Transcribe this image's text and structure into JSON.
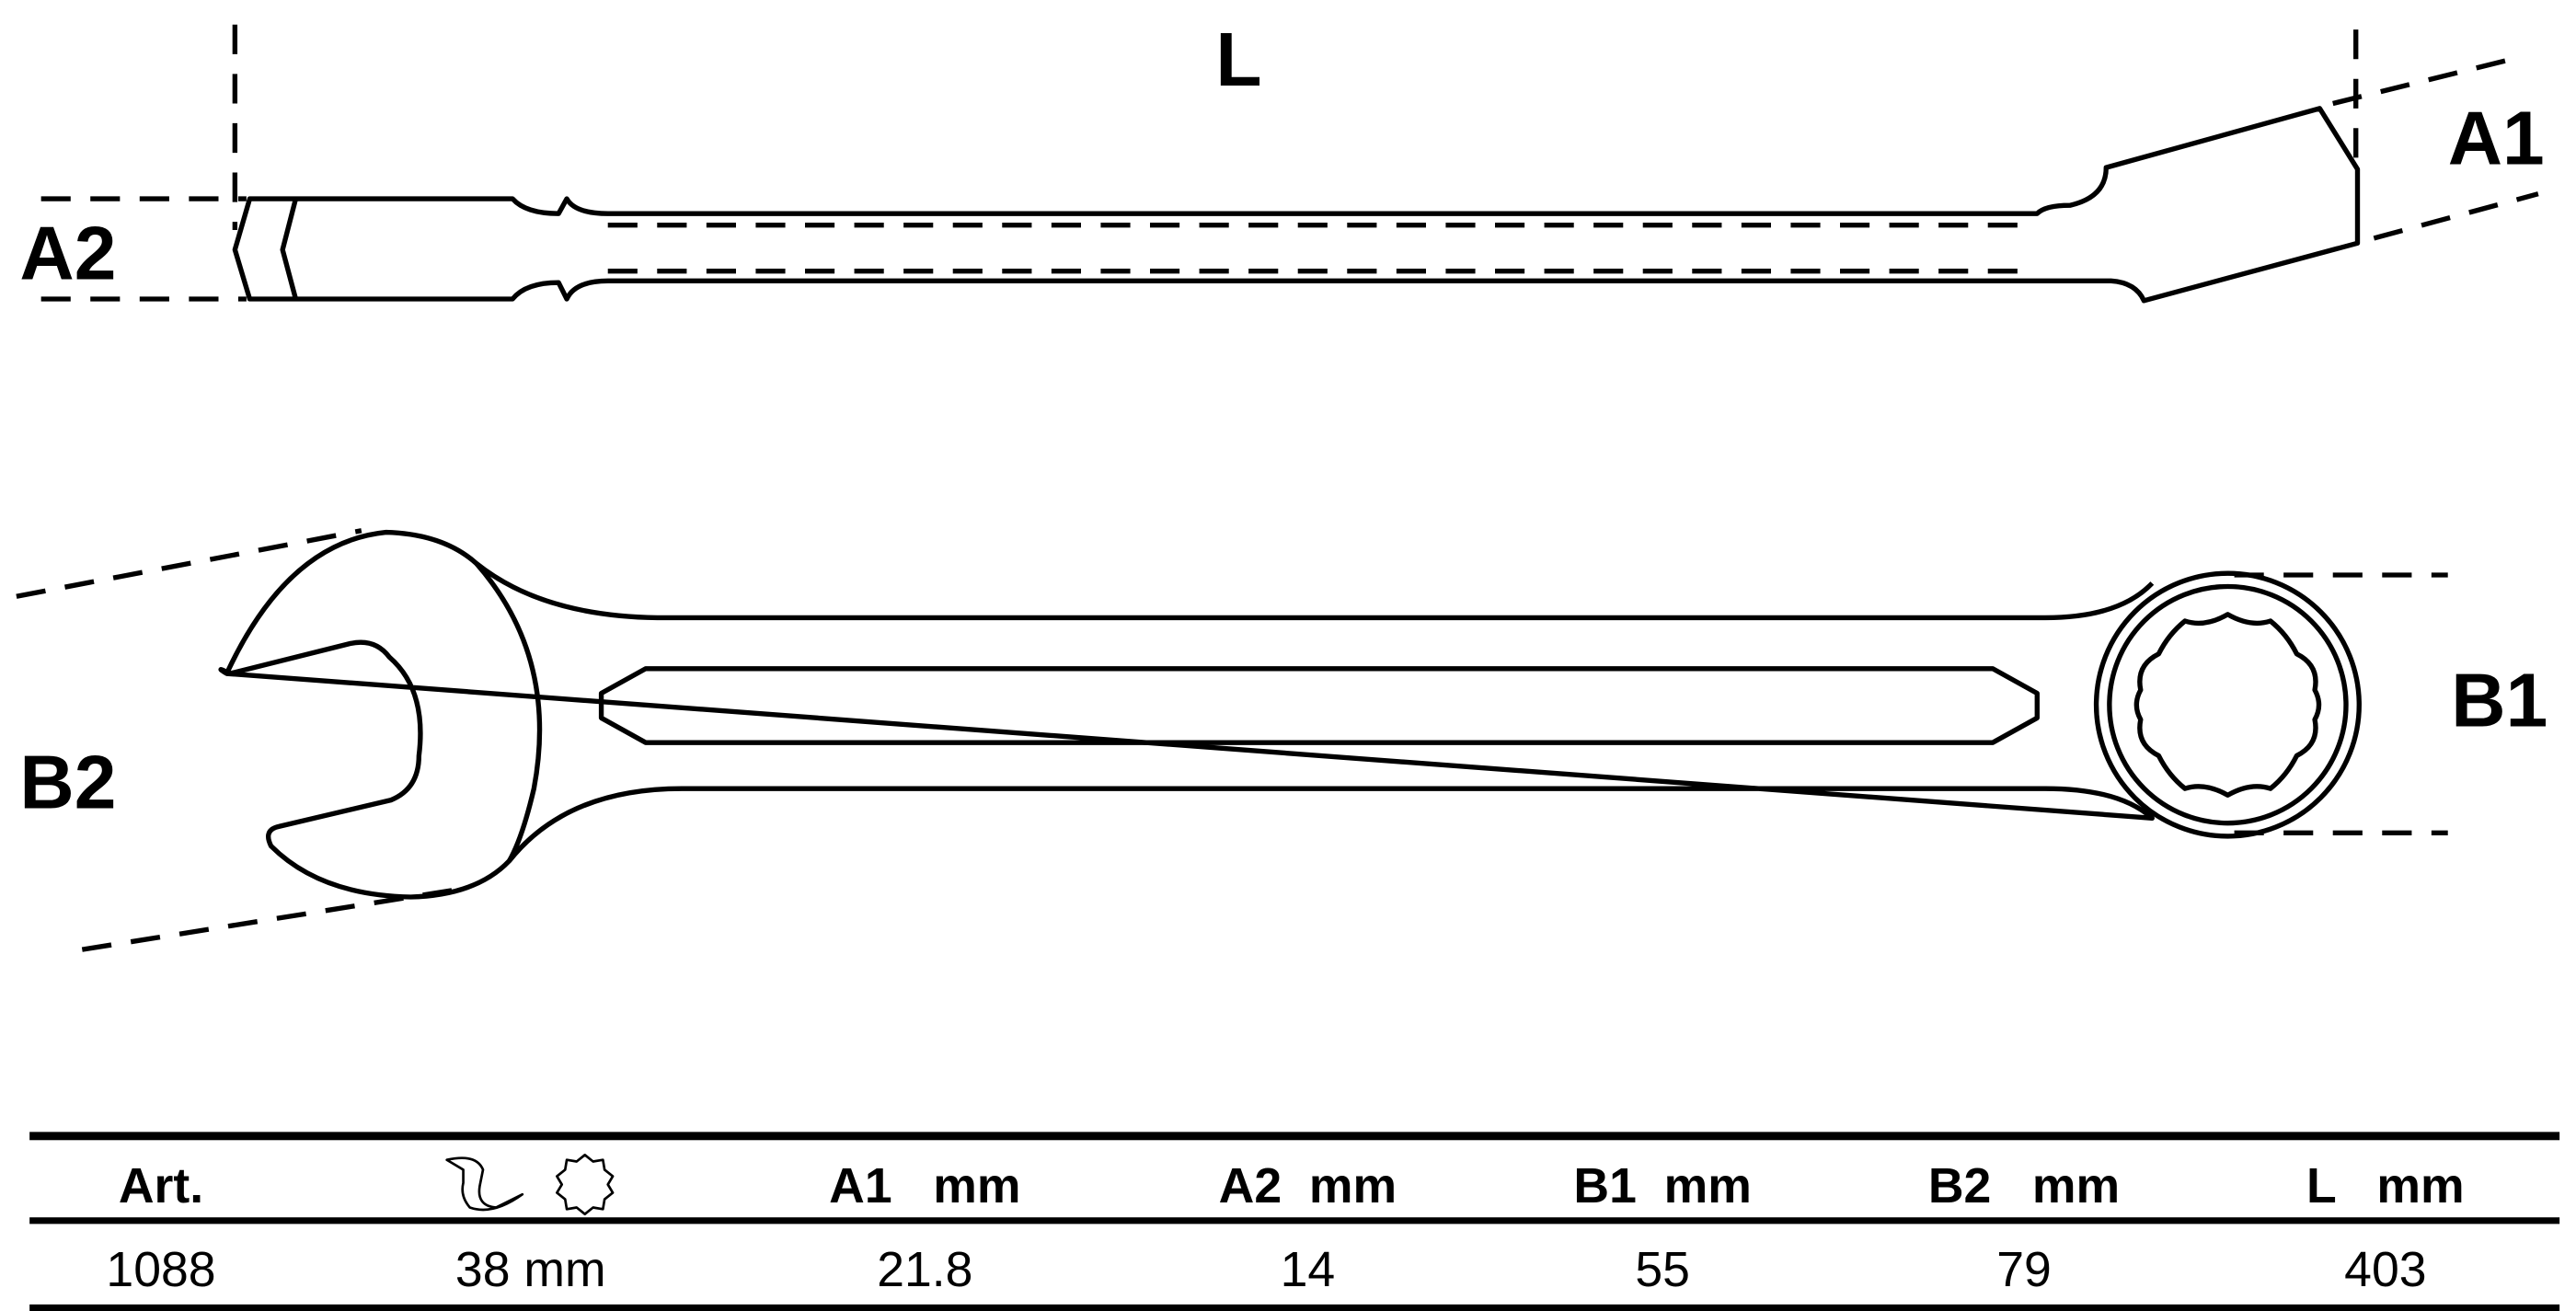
{
  "labels": {
    "L": "L",
    "A1": "A1",
    "A2": "A2",
    "B1": "B1",
    "B2": "B2"
  },
  "table": {
    "headers": [
      "Art.",
      "",
      "A1   mm",
      "A2  mm",
      "B1  mm",
      "B2   mm",
      "L   mm"
    ],
    "header_icons": [
      "open-end-wrench-icon",
      "twelve-point-ring-icon"
    ],
    "rows": [
      [
        "1088",
        "38 mm",
        "21.8",
        "14",
        "55",
        "79",
        "403"
      ]
    ]
  }
}
